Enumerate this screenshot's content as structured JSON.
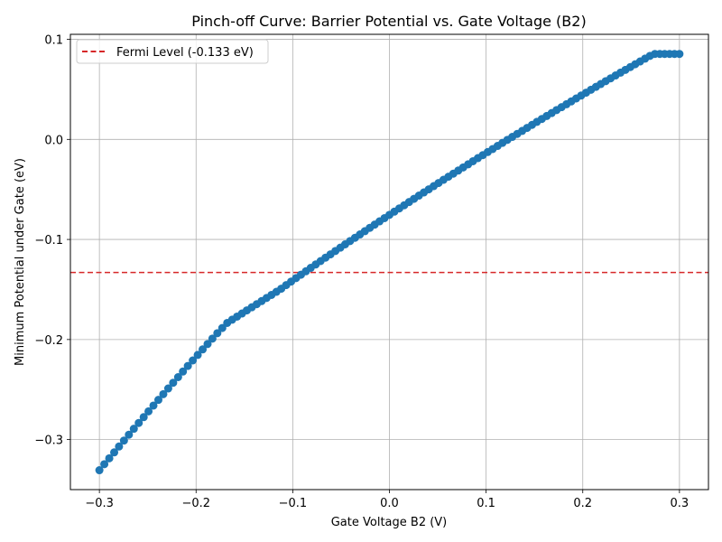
{
  "chart_data": {
    "type": "scatter",
    "title": "Pinch-off Curve: Barrier Potential vs. Gate Voltage (B2)",
    "xlabel": "Gate Voltage B2 (V)",
    "ylabel": "Minimum Potential under Gate (eV)",
    "xlim": [
      -0.33,
      0.33
    ],
    "ylim": [
      -0.35,
      0.105
    ],
    "xticks": [
      -0.3,
      -0.2,
      -0.1,
      0.0,
      0.1,
      0.2,
      0.3
    ],
    "xtick_labels": [
      "−0.3",
      "−0.2",
      "−0.1",
      "0.0",
      "0.1",
      "0.2",
      "0.3"
    ],
    "yticks": [
      -0.3,
      -0.2,
      -0.1,
      0.0,
      0.1
    ],
    "ytick_labels": [
      "−0.3",
      "−0.2",
      "−0.1",
      "0.0",
      "0.1"
    ],
    "grid": true,
    "legend_position": "top-left",
    "series": [
      {
        "color": "#1f77b4",
        "x": [
          -0.3,
          -0.2949,
          -0.2898,
          -0.2847,
          -0.2797,
          -0.2746,
          -0.2695,
          -0.2644,
          -0.2593,
          -0.2542,
          -0.2492,
          -0.2441,
          -0.239,
          -0.2339,
          -0.2288,
          -0.2237,
          -0.2186,
          -0.2136,
          -0.2085,
          -0.2034,
          -0.1983,
          -0.1932,
          -0.1881,
          -0.1831,
          -0.178,
          -0.1729,
          -0.1678,
          -0.1627,
          -0.1576,
          -0.1525,
          -0.1475,
          -0.1424,
          -0.1373,
          -0.1322,
          -0.1271,
          -0.122,
          -0.1169,
          -0.1119,
          -0.1068,
          -0.1017,
          -0.0966,
          -0.0915,
          -0.0864,
          -0.0814,
          -0.0763,
          -0.0712,
          -0.0661,
          -0.061,
          -0.0559,
          -0.0508,
          -0.0458,
          -0.0407,
          -0.0356,
          -0.0305,
          -0.0254,
          -0.0203,
          -0.0153,
          -0.0102,
          -0.0051,
          0.0,
          0.0051,
          0.0102,
          0.0153,
          0.0203,
          0.0254,
          0.0305,
          0.0356,
          0.0407,
          0.0458,
          0.0508,
          0.0559,
          0.061,
          0.0661,
          0.0712,
          0.0763,
          0.0814,
          0.0864,
          0.0915,
          0.0966,
          0.1017,
          0.1068,
          0.1119,
          0.1169,
          0.122,
          0.1271,
          0.1322,
          0.1373,
          0.1424,
          0.1475,
          0.1525,
          0.1576,
          0.1627,
          0.1678,
          0.1729,
          0.178,
          0.1831,
          0.1881,
          0.1932,
          0.1983,
          0.2034,
          0.2085,
          0.2136,
          0.2186,
          0.2237,
          0.2288,
          0.2339,
          0.239,
          0.2441,
          0.2492,
          0.2542,
          0.2593,
          0.2644,
          0.2695,
          0.2746,
          0.2797,
          0.2847,
          0.2898,
          0.2949,
          0.3
        ],
        "y": [
          -0.3306,
          -0.3246,
          -0.3187,
          -0.3128,
          -0.3069,
          -0.301,
          -0.2951,
          -0.2892,
          -0.2834,
          -0.2776,
          -0.2718,
          -0.266,
          -0.2603,
          -0.2546,
          -0.2489,
          -0.2432,
          -0.2376,
          -0.232,
          -0.2264,
          -0.2209,
          -0.2154,
          -0.2099,
          -0.2045,
          -0.1991,
          -0.1937,
          -0.1885,
          -0.1834,
          -0.1802,
          -0.1771,
          -0.174,
          -0.1709,
          -0.1678,
          -0.1647,
          -0.1616,
          -0.1585,
          -0.1554,
          -0.1523,
          -0.1492,
          -0.1456,
          -0.1421,
          -0.1386,
          -0.1352,
          -0.1318,
          -0.1284,
          -0.125,
          -0.1216,
          -0.1182,
          -0.1149,
          -0.1115,
          -0.1082,
          -0.1049,
          -0.1016,
          -0.0983,
          -0.095,
          -0.0917,
          -0.0884,
          -0.0852,
          -0.0819,
          -0.0787,
          -0.0754,
          -0.0722,
          -0.069,
          -0.0658,
          -0.0626,
          -0.0594,
          -0.0562,
          -0.053,
          -0.0499,
          -0.0467,
          -0.0436,
          -0.0404,
          -0.0373,
          -0.0342,
          -0.0311,
          -0.028,
          -0.0249,
          -0.0218,
          -0.0187,
          -0.0157,
          -0.0126,
          -0.0096,
          -0.0065,
          -0.0035,
          -0.0005,
          0.0025,
          0.0055,
          0.0085,
          0.0115,
          0.0145,
          0.0175,
          0.0204,
          0.0234,
          0.0263,
          0.0293,
          0.0322,
          0.0351,
          0.038,
          0.0409,
          0.0438,
          0.0467,
          0.0496,
          0.0525,
          0.0553,
          0.0582,
          0.061,
          0.0639,
          0.0667,
          0.0695,
          0.0723,
          0.0751,
          0.0779,
          0.0807,
          0.0835,
          0.0854,
          0.0854,
          0.0854,
          0.0854,
          0.0854,
          0.0854
        ]
      }
    ],
    "reference_line": {
      "label": "Fermi Level (-0.133 eV)",
      "y": -0.133,
      "color": "#d62728",
      "style": "dashed"
    }
  }
}
